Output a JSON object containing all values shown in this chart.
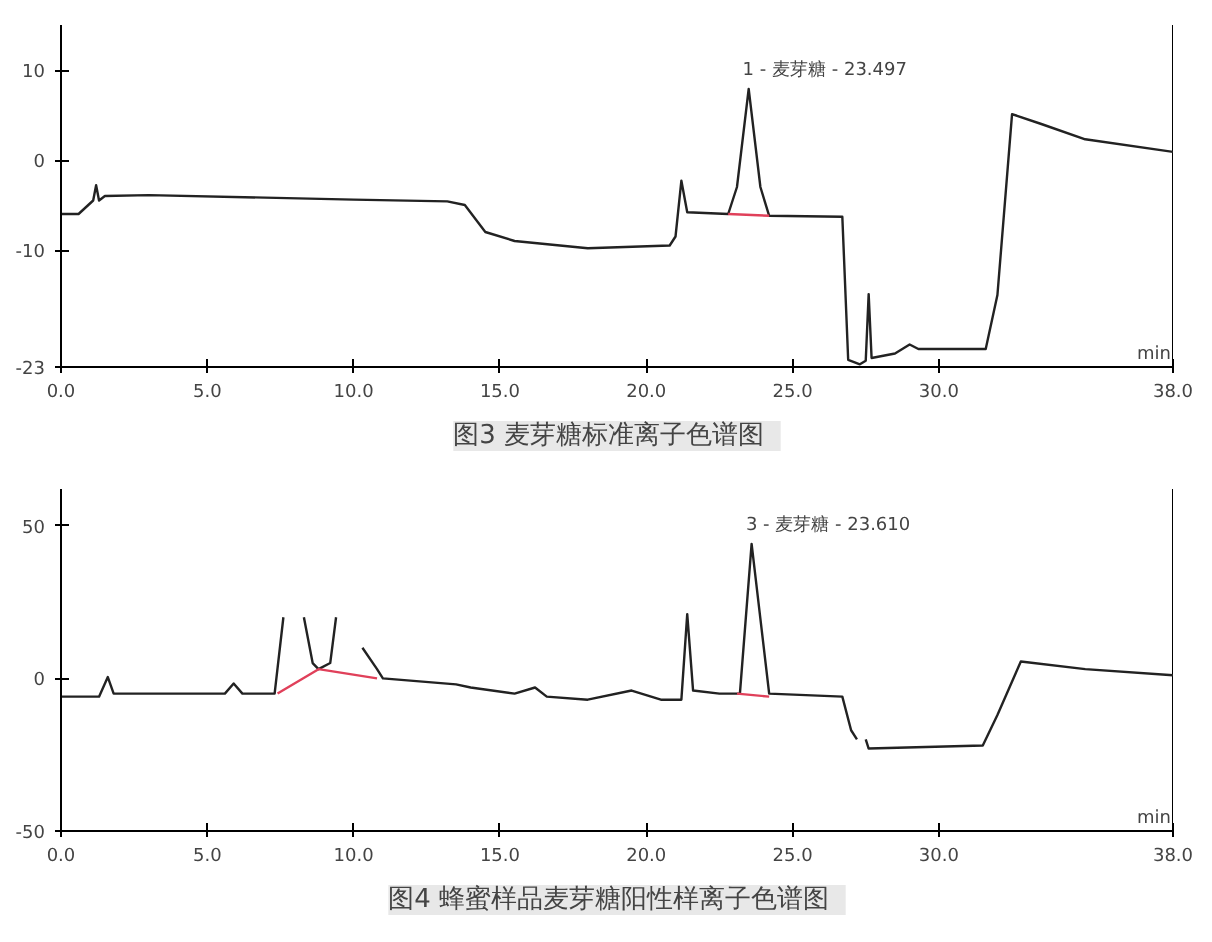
{
  "chart_data": [
    {
      "type": "line",
      "title": "图3   麦芽糖标准离子色谱图",
      "xlabel": "min",
      "xlim": [
        0,
        38
      ],
      "xticks": [
        {
          "value": 0,
          "label": "0.0"
        },
        {
          "value": 5,
          "label": "5.0"
        },
        {
          "value": 10,
          "label": "10.0"
        },
        {
          "value": 15,
          "label": "15.0"
        },
        {
          "value": 20,
          "label": "20.0"
        },
        {
          "value": 25,
          "label": "25.0"
        },
        {
          "value": 30,
          "label": "30.0"
        },
        {
          "value": 38,
          "label": "38.0"
        }
      ],
      "ylim": [
        -23,
        15
      ],
      "yticks": [
        10,
        0,
        -10,
        -23
      ],
      "grid": false,
      "marker": "none",
      "line_style": "solid",
      "series": [
        {
          "color": "#222222",
          "x": [
            0,
            0.6,
            1.1,
            1.2,
            1.3,
            1.5,
            3,
            10,
            13.2,
            13.8,
            14.5,
            15.5,
            18,
            20.8,
            21.0,
            21.2,
            21.4,
            22.8,
            23.1,
            23.5,
            23.9,
            24.2,
            26.7,
            26.9,
            27.3,
            27.5,
            27.6,
            27.7,
            28.5,
            29.0,
            29.3,
            31.6,
            32.0,
            32.5,
            33.5,
            35,
            38
          ],
          "values": [
            -6,
            -6,
            -4.5,
            -2.8,
            -4.5,
            -4,
            -3.9,
            -4.4,
            -4.6,
            -5,
            -8,
            -9,
            -9.8,
            -9.5,
            -8.5,
            -2.3,
            -5.8,
            -6,
            -3,
            7.9,
            -3,
            -6.2,
            -6.3,
            -22.2,
            -22.7,
            -22.3,
            -14.9,
            -22,
            -21.5,
            -20.5,
            -21,
            -21,
            -15,
            5.1,
            4,
            2.3,
            0.9
          ]
        },
        {
          "color": "#e0405a",
          "x": [
            22.8,
            24.2
          ],
          "values": [
            -6,
            -6.2
          ]
        }
      ],
      "annotations": [
        {
          "text": "1 - 麦芽糖 - 23.497",
          "x": 23.497,
          "y": 7.9
        }
      ]
    },
    {
      "type": "line",
      "title": "图4   蜂蜜样品麦芽糖阳性样离子色谱图",
      "xlabel": "min",
      "xlim": [
        0,
        38
      ],
      "xticks": [
        {
          "value": 0,
          "label": "0.0"
        },
        {
          "value": 5,
          "label": "5.0"
        },
        {
          "value": 10,
          "label": "10.0"
        },
        {
          "value": 15,
          "label": "15.0"
        },
        {
          "value": 20,
          "label": "20.0"
        },
        {
          "value": 25,
          "label": "25.0"
        },
        {
          "value": 30,
          "label": "30.0"
        },
        {
          "value": 38,
          "label": "38.0"
        }
      ],
      "ylim": [
        -50,
        62
      ],
      "yticks": [
        50,
        0,
        -50
      ],
      "grid": false,
      "marker": "none",
      "line_style": "solid",
      "series": [
        {
          "color": "#222222",
          "x": [
            0,
            1.3,
            1.6,
            1.8,
            5.6,
            5.9,
            6.2,
            7.3,
            7.6,
            7.75,
            8.2,
            8.3,
            8.6,
            8.8,
            9.2,
            9.4,
            9.5,
            9.6,
            10.0,
            10.3,
            10.8,
            11,
            13.5,
            14,
            15.5,
            16.2,
            16.6,
            18,
            19.5,
            20.5,
            21.2,
            21.4,
            21.6,
            22.5,
            23.2,
            23.6,
            24.2,
            26.7,
            27.0,
            27.2,
            27.4,
            27.5,
            27.6,
            31.5,
            32,
            32.8,
            35,
            38
          ],
          "values": [
            -6,
            -6,
            0.4,
            -5,
            -5,
            -1.7,
            -5,
            -5,
            20,
            null,
            null,
            20,
            5,
            3,
            5,
            20,
            null,
            null,
            null,
            10,
            3,
            0,
            -2,
            -3,
            -5,
            -3,
            -6,
            -7,
            -4,
            -7,
            -7,
            21,
            -4,
            -5,
            -5,
            44,
            -5,
            -6,
            -17,
            -20,
            null,
            -20,
            -23,
            -22,
            -12,
            5.5,
            3,
            1
          ]
        },
        {
          "color": "#e0405a",
          "x": [
            7.4,
            8.8,
            10.8
          ],
          "values": [
            -5,
            3,
            0
          ]
        },
        {
          "color": "#e0405a",
          "x": [
            23.1,
            24.2
          ],
          "values": [
            -5,
            -6
          ]
        }
      ],
      "annotations": [
        {
          "text": "3 - 麦芽糖 - 23.610",
          "x": 23.61,
          "y": 44
        }
      ]
    }
  ]
}
